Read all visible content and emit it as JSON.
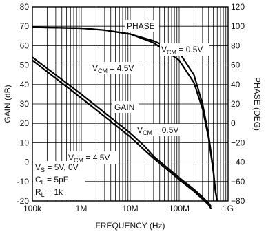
{
  "chart_data": {
    "type": "line",
    "title": "",
    "xlabel": "FREQUENCY (Hz)",
    "ylabel_left": "GAIN (dB)",
    "ylabel_right": "PHASE (DEG)",
    "x_scale": "log",
    "x_ticks": [
      {
        "value": 100000,
        "label": "100k"
      },
      {
        "value": 1000000,
        "label": "1M"
      },
      {
        "value": 10000000,
        "label": "10M"
      },
      {
        "value": 100000000,
        "label": "100M"
      },
      {
        "value": 1000000000,
        "label": "1G"
      }
    ],
    "xlim": [
      100000,
      1000000000
    ],
    "ylim_left": [
      -20,
      80
    ],
    "ylim_right": [
      -80,
      120
    ],
    "yticks_left": [
      "80",
      "70",
      "60",
      "50",
      "40",
      "30",
      "20",
      "10",
      "0",
      "-10",
      "-20"
    ],
    "yticks_right": [
      "120",
      "100",
      "80",
      "60",
      "40",
      "20",
      "0",
      "−20",
      "−40",
      "−60",
      "−80"
    ],
    "grid": true,
    "series": [
      {
        "axis": "right",
        "x": [
          100000,
          1000000,
          3000000,
          10000000,
          30000000,
          100000000,
          200000000,
          300000000,
          400000000,
          500000000,
          550000000,
          600000000
        ],
        "y": [
          99,
          98,
          96,
          92,
          83,
          65,
          42,
          15,
          -15,
          -50,
          -70,
          -80
        ]
      },
      {
        "axis": "right",
        "x": [
          100000,
          1000000,
          3000000,
          10000000,
          30000000,
          100000000,
          200000000,
          300000000,
          400000000,
          500000000,
          550000000,
          600000000
        ],
        "y": [
          99,
          98,
          96,
          92,
          85,
          73,
          50,
          20,
          -12,
          -48,
          -70,
          -80
        ]
      },
      {
        "axis": "left",
        "x": [
          100000,
          1000000,
          10000000,
          20000000,
          30000000,
          100000000,
          200000000,
          300000000,
          400000000,
          450000000
        ],
        "y": [
          54,
          35,
          15,
          8,
          3,
          -8,
          -14,
          -18,
          -21,
          -23
        ]
      },
      {
        "axis": "left",
        "x": [
          100000,
          1000000,
          10000000,
          20000000,
          30000000,
          100000000,
          200000000,
          300000000,
          400000000,
          450000000
        ],
        "y": [
          52.5,
          33,
          13,
          6,
          2,
          -9,
          -15,
          -19,
          -22,
          -24
        ]
      }
    ],
    "annotations": {
      "phase": "PHASE",
      "gain": "GAIN",
      "vcm_phase_05_main": "V",
      "vcm_phase_05_sub": "CM",
      "vcm_phase_05_rest": " = 0.5V",
      "vcm_phase_45_main": "V",
      "vcm_phase_45_sub": "CM",
      "vcm_phase_45_rest": " = 4.5V",
      "vcm_gain_45_main": "V",
      "vcm_gain_45_sub": "CM",
      "vcm_gain_45_rest": " = 4.5V",
      "vcm_gain_05_main": "V",
      "vcm_gain_05_sub": "CM",
      "vcm_gain_05_rest": " = 0.5V",
      "vs_main": "V",
      "vs_sub": "S",
      "vs_rest": " = 5V, 0V",
      "cl_main": "C",
      "cl_sub": "L",
      "cl_rest": " = 5pF",
      "rl_main": "R",
      "rl_sub": "L",
      "rl_rest": " = 1k"
    }
  }
}
